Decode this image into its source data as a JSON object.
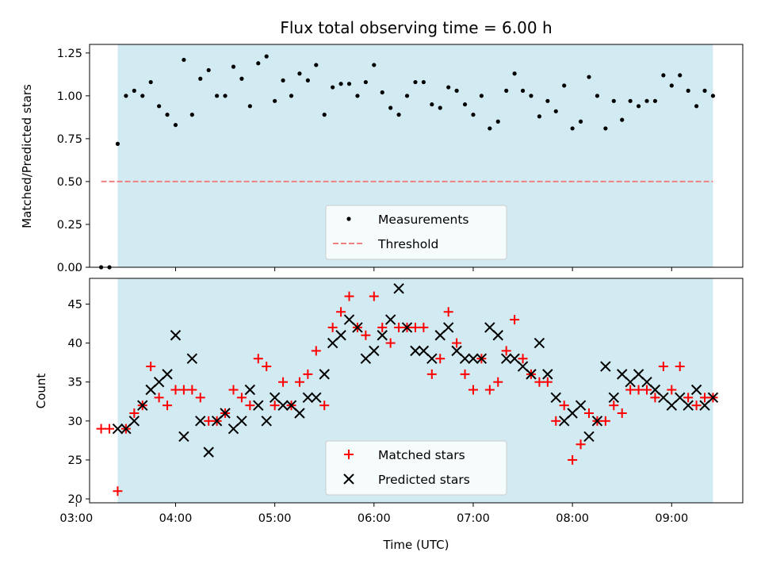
{
  "chart_data": [
    {
      "type": "scatter",
      "title": "Flux total observing time = 6.00 h",
      "ylabel": "Matched/Predicted stars",
      "xlabel": "",
      "xlim": [
        "03:08",
        "09:43"
      ],
      "ylim": [
        0.0,
        1.3
      ],
      "yticks": [
        "0.00",
        "0.25",
        "0.50",
        "0.75",
        "1.00",
        "1.25"
      ],
      "shaded_span": [
        "03:25",
        "09:25"
      ],
      "shade_color": "#add8e6",
      "threshold": {
        "value": 0.5,
        "from": "03:15",
        "to": "09:25",
        "color": "#f08080"
      },
      "legend_position": "lower center",
      "legend": {
        "measurements": "Measurements",
        "threshold": "Threshold"
      },
      "series": [
        {
          "name": "Measurements",
          "marker": "dot",
          "color": "#000000",
          "points": [
            [
              "03:15",
              0.0
            ],
            [
              "03:20",
              0.0
            ],
            [
              "03:25",
              0.72
            ],
            [
              "03:30",
              1.0
            ],
            [
              "03:35",
              1.03
            ],
            [
              "03:40",
              1.0
            ],
            [
              "03:45",
              1.08
            ],
            [
              "03:50",
              0.94
            ],
            [
              "03:55",
              0.89
            ],
            [
              "04:00",
              0.83
            ],
            [
              "04:05",
              1.21
            ],
            [
              "04:10",
              0.89
            ],
            [
              "04:15",
              1.1
            ],
            [
              "04:20",
              1.15
            ],
            [
              "04:25",
              1.0
            ],
            [
              "04:30",
              1.0
            ],
            [
              "04:35",
              1.17
            ],
            [
              "04:40",
              1.1
            ],
            [
              "04:45",
              0.94
            ],
            [
              "04:50",
              1.19
            ],
            [
              "04:55",
              1.23
            ],
            [
              "05:00",
              0.97
            ],
            [
              "05:05",
              1.09
            ],
            [
              "05:10",
              1.0
            ],
            [
              "05:15",
              1.13
            ],
            [
              "05:20",
              1.09
            ],
            [
              "05:25",
              1.18
            ],
            [
              "05:30",
              0.89
            ],
            [
              "05:35",
              1.05
            ],
            [
              "05:40",
              1.07
            ],
            [
              "05:45",
              1.07
            ],
            [
              "05:50",
              1.0
            ],
            [
              "05:55",
              1.08
            ],
            [
              "06:00",
              1.18
            ],
            [
              "06:05",
              1.02
            ],
            [
              "06:10",
              0.93
            ],
            [
              "06:15",
              0.89
            ],
            [
              "06:20",
              1.0
            ],
            [
              "06:25",
              1.08
            ],
            [
              "06:30",
              1.08
            ],
            [
              "06:35",
              0.95
            ],
            [
              "06:40",
              0.93
            ],
            [
              "06:45",
              1.05
            ],
            [
              "06:50",
              1.03
            ],
            [
              "06:55",
              0.95
            ],
            [
              "07:00",
              0.89
            ],
            [
              "07:05",
              1.0
            ],
            [
              "07:10",
              0.81
            ],
            [
              "07:15",
              0.85
            ],
            [
              "07:20",
              1.03
            ],
            [
              "07:25",
              1.13
            ],
            [
              "07:30",
              1.03
            ],
            [
              "07:35",
              1.0
            ],
            [
              "07:40",
              0.88
            ],
            [
              "07:45",
              0.97
            ],
            [
              "07:50",
              0.91
            ],
            [
              "07:55",
              1.06
            ],
            [
              "08:00",
              0.81
            ],
            [
              "08:05",
              0.85
            ],
            [
              "08:10",
              1.11
            ],
            [
              "08:15",
              1.0
            ],
            [
              "08:20",
              0.81
            ],
            [
              "08:25",
              0.97
            ],
            [
              "08:30",
              0.86
            ],
            [
              "08:35",
              0.97
            ],
            [
              "08:40",
              0.94
            ],
            [
              "08:45",
              0.97
            ],
            [
              "08:50",
              0.97
            ],
            [
              "08:55",
              1.12
            ],
            [
              "09:00",
              1.06
            ],
            [
              "09:05",
              1.12
            ],
            [
              "09:10",
              1.03
            ],
            [
              "09:15",
              0.94
            ],
            [
              "09:20",
              1.03
            ],
            [
              "09:25",
              1.0
            ]
          ]
        }
      ]
    },
    {
      "type": "scatter",
      "title": "",
      "ylabel": "Count",
      "xlabel": "Time (UTC)",
      "xlim": [
        "03:08",
        "09:43"
      ],
      "ylim": [
        19.5,
        48.3
      ],
      "yticks": [
        "20",
        "25",
        "30",
        "35",
        "40",
        "45"
      ],
      "xticks": [
        "03:00",
        "04:00",
        "05:00",
        "06:00",
        "07:00",
        "08:00",
        "09:00"
      ],
      "shaded_span": [
        "03:25",
        "09:25"
      ],
      "legend_position": "lower center",
      "legend": {
        "matched": "Matched stars",
        "predicted": "Predicted stars"
      },
      "series": [
        {
          "name": "Matched stars",
          "marker": "plus",
          "color": "#ff0000",
          "points": [
            [
              "03:15",
              29
            ],
            [
              "03:20",
              29
            ],
            [
              "03:25",
              21
            ],
            [
              "03:30",
              29
            ],
            [
              "03:35",
              31
            ],
            [
              "03:40",
              32
            ],
            [
              "03:45",
              37
            ],
            [
              "03:50",
              33
            ],
            [
              "03:55",
              32
            ],
            [
              "04:00",
              34
            ],
            [
              "04:05",
              34
            ],
            [
              "04:10",
              34
            ],
            [
              "04:15",
              33
            ],
            [
              "04:20",
              30
            ],
            [
              "04:25",
              30
            ],
            [
              "04:30",
              31
            ],
            [
              "04:35",
              34
            ],
            [
              "04:40",
              33
            ],
            [
              "04:45",
              32
            ],
            [
              "04:50",
              38
            ],
            [
              "04:55",
              37
            ],
            [
              "05:00",
              32
            ],
            [
              "05:05",
              35
            ],
            [
              "05:10",
              32
            ],
            [
              "05:15",
              35
            ],
            [
              "05:20",
              36
            ],
            [
              "05:25",
              39
            ],
            [
              "05:30",
              32
            ],
            [
              "05:35",
              42
            ],
            [
              "05:40",
              44
            ],
            [
              "05:45",
              46
            ],
            [
              "05:50",
              42
            ],
            [
              "05:55",
              41
            ],
            [
              "06:00",
              46
            ],
            [
              "06:05",
              42
            ],
            [
              "06:10",
              40
            ],
            [
              "06:15",
              42
            ],
            [
              "06:20",
              42
            ],
            [
              "06:25",
              42
            ],
            [
              "06:30",
              42
            ],
            [
              "06:35",
              36
            ],
            [
              "06:40",
              38
            ],
            [
              "06:45",
              44
            ],
            [
              "06:50",
              40
            ],
            [
              "06:55",
              36
            ],
            [
              "07:00",
              34
            ],
            [
              "07:05",
              38
            ],
            [
              "07:10",
              34
            ],
            [
              "07:15",
              35
            ],
            [
              "07:20",
              39
            ],
            [
              "07:25",
              43
            ],
            [
              "07:30",
              38
            ],
            [
              "07:35",
              36
            ],
            [
              "07:40",
              35
            ],
            [
              "07:45",
              35
            ],
            [
              "07:50",
              30
            ],
            [
              "07:55",
              32
            ],
            [
              "08:00",
              25
            ],
            [
              "08:05",
              27
            ],
            [
              "08:10",
              31
            ],
            [
              "08:15",
              30
            ],
            [
              "08:20",
              30
            ],
            [
              "08:25",
              32
            ],
            [
              "08:30",
              31
            ],
            [
              "08:35",
              34
            ],
            [
              "08:40",
              34
            ],
            [
              "08:45",
              34
            ],
            [
              "08:50",
              33
            ],
            [
              "08:55",
              37
            ],
            [
              "09:00",
              34
            ],
            [
              "09:05",
              37
            ],
            [
              "09:10",
              33
            ],
            [
              "09:15",
              32
            ],
            [
              "09:20",
              33
            ],
            [
              "09:25",
              33
            ]
          ]
        },
        {
          "name": "Predicted stars",
          "marker": "x",
          "color": "#000000",
          "points": [
            [
              "03:25",
              29
            ],
            [
              "03:30",
              29
            ],
            [
              "03:35",
              30
            ],
            [
              "03:40",
              32
            ],
            [
              "03:45",
              34
            ],
            [
              "03:50",
              35
            ],
            [
              "03:55",
              36
            ],
            [
              "04:00",
              41
            ],
            [
              "04:05",
              28
            ],
            [
              "04:10",
              38
            ],
            [
              "04:15",
              30
            ],
            [
              "04:20",
              26
            ],
            [
              "04:25",
              30
            ],
            [
              "04:30",
              31
            ],
            [
              "04:35",
              29
            ],
            [
              "04:40",
              30
            ],
            [
              "04:45",
              34
            ],
            [
              "04:50",
              32
            ],
            [
              "04:55",
              30
            ],
            [
              "05:00",
              33
            ],
            [
              "05:05",
              32
            ],
            [
              "05:10",
              32
            ],
            [
              "05:15",
              31
            ],
            [
              "05:20",
              33
            ],
            [
              "05:25",
              33
            ],
            [
              "05:30",
              36
            ],
            [
              "05:35",
              40
            ],
            [
              "05:40",
              41
            ],
            [
              "05:45",
              43
            ],
            [
              "05:50",
              42
            ],
            [
              "05:55",
              38
            ],
            [
              "06:00",
              39
            ],
            [
              "06:05",
              41
            ],
            [
              "06:10",
              43
            ],
            [
              "06:15",
              47
            ],
            [
              "06:20",
              42
            ],
            [
              "06:25",
              39
            ],
            [
              "06:30",
              39
            ],
            [
              "06:35",
              38
            ],
            [
              "06:40",
              41
            ],
            [
              "06:45",
              42
            ],
            [
              "06:50",
              39
            ],
            [
              "06:55",
              38
            ],
            [
              "07:00",
              38
            ],
            [
              "07:05",
              38
            ],
            [
              "07:10",
              42
            ],
            [
              "07:15",
              41
            ],
            [
              "07:20",
              38
            ],
            [
              "07:25",
              38
            ],
            [
              "07:30",
              37
            ],
            [
              "07:35",
              36
            ],
            [
              "07:40",
              40
            ],
            [
              "07:45",
              36
            ],
            [
              "07:50",
              33
            ],
            [
              "07:55",
              30
            ],
            [
              "08:00",
              31
            ],
            [
              "08:05",
              32
            ],
            [
              "08:10",
              28
            ],
            [
              "08:15",
              30
            ],
            [
              "08:20",
              37
            ],
            [
              "08:25",
              33
            ],
            [
              "08:30",
              36
            ],
            [
              "08:35",
              35
            ],
            [
              "08:40",
              36
            ],
            [
              "08:45",
              35
            ],
            [
              "08:50",
              34
            ],
            [
              "08:55",
              33
            ],
            [
              "09:00",
              32
            ],
            [
              "09:05",
              33
            ],
            [
              "09:10",
              32
            ],
            [
              "09:15",
              34
            ],
            [
              "09:20",
              32
            ],
            [
              "09:25",
              33
            ]
          ]
        }
      ]
    }
  ]
}
